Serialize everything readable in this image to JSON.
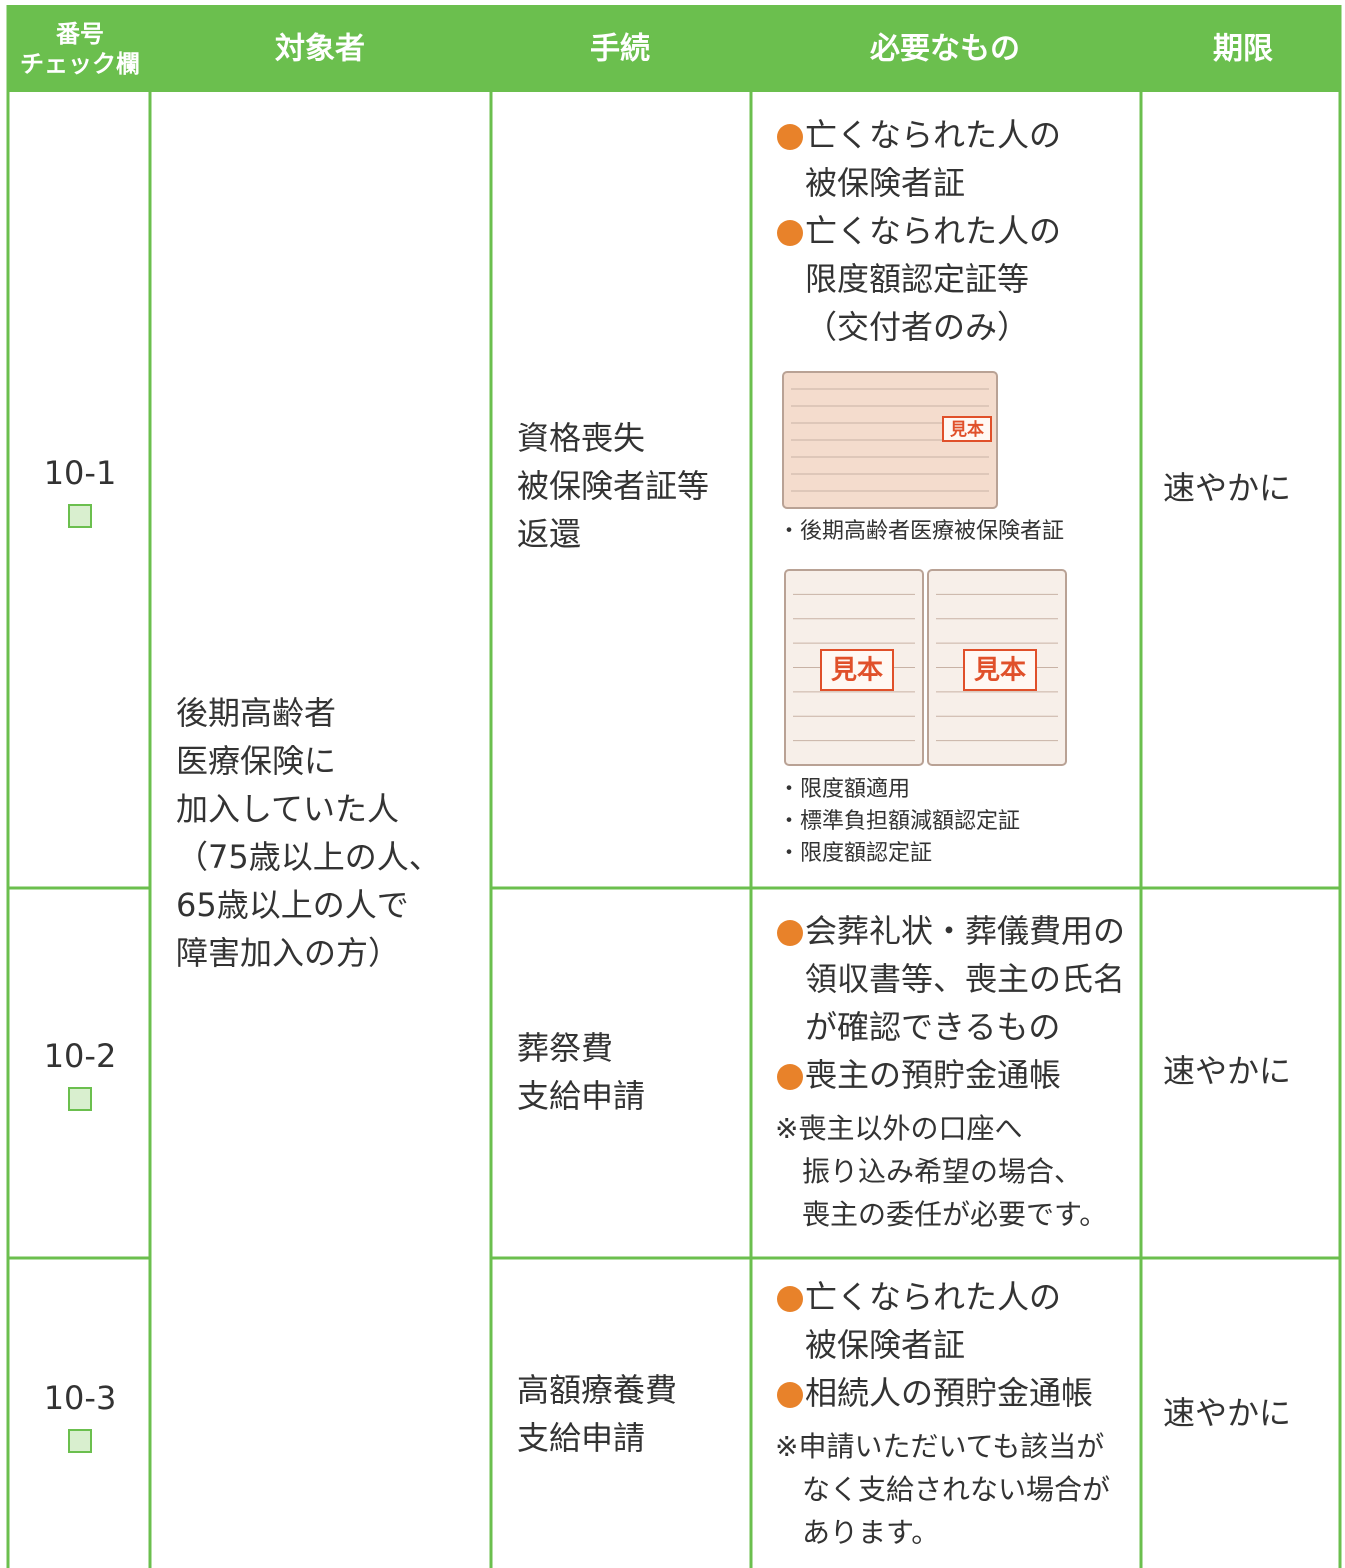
{
  "header": {
    "columns": [
      [
        "番号",
        "チェック欄"
      ],
      [
        "対象者"
      ],
      [
        "手続"
      ],
      [
        "必要なもの"
      ],
      [
        "期限"
      ]
    ]
  },
  "target": [
    "後期高齢者",
    "医療保険に",
    "加入していた人",
    "（75歳以上の人、",
    "65歳以上の人で",
    "障害加入の方）"
  ],
  "rows": [
    {
      "number": "10-1",
      "procedure": [
        "資格喪失",
        "被保険者証等",
        "返還"
      ],
      "items": [
        [
          "亡くなられた人の",
          "被保険者証"
        ],
        [
          "亡くなられた人の",
          "限度額認定証等",
          "（交付者のみ）"
        ]
      ],
      "samples": [
        {
          "stamps": [
            "見本"
          ],
          "caption": [
            "・後期高齢者医療被保険者証"
          ]
        },
        {
          "stamps": [
            "見本",
            "見本"
          ],
          "caption": [
            "・限度額適用",
            "・標準負担額減額認定証",
            "・限度額認定証"
          ]
        }
      ],
      "deadline": "速やかに"
    },
    {
      "number": "10-2",
      "procedure": [
        "葬祭費",
        "支給申請"
      ],
      "items": [
        [
          "会葬礼状・葬儀費用の",
          "領収書等、喪主の氏名",
          "が確認できるもの"
        ],
        [
          "喪主の預貯金通帳"
        ]
      ],
      "note": [
        "※喪主以外の口座へ",
        "振り込み希望の場合、",
        "喪主の委任が必要です。"
      ],
      "deadline": "速やかに"
    },
    {
      "number": "10-3",
      "procedure": [
        "高額療養費",
        "支給申請"
      ],
      "items": [
        [
          "亡くなられた人の",
          "被保険者証"
        ],
        [
          "相続人の預貯金通帳"
        ]
      ],
      "note": [
        "※申請いただいても該当が",
        "なく支給されない場合が",
        "あります。"
      ],
      "deadline": "速やかに"
    }
  ]
}
